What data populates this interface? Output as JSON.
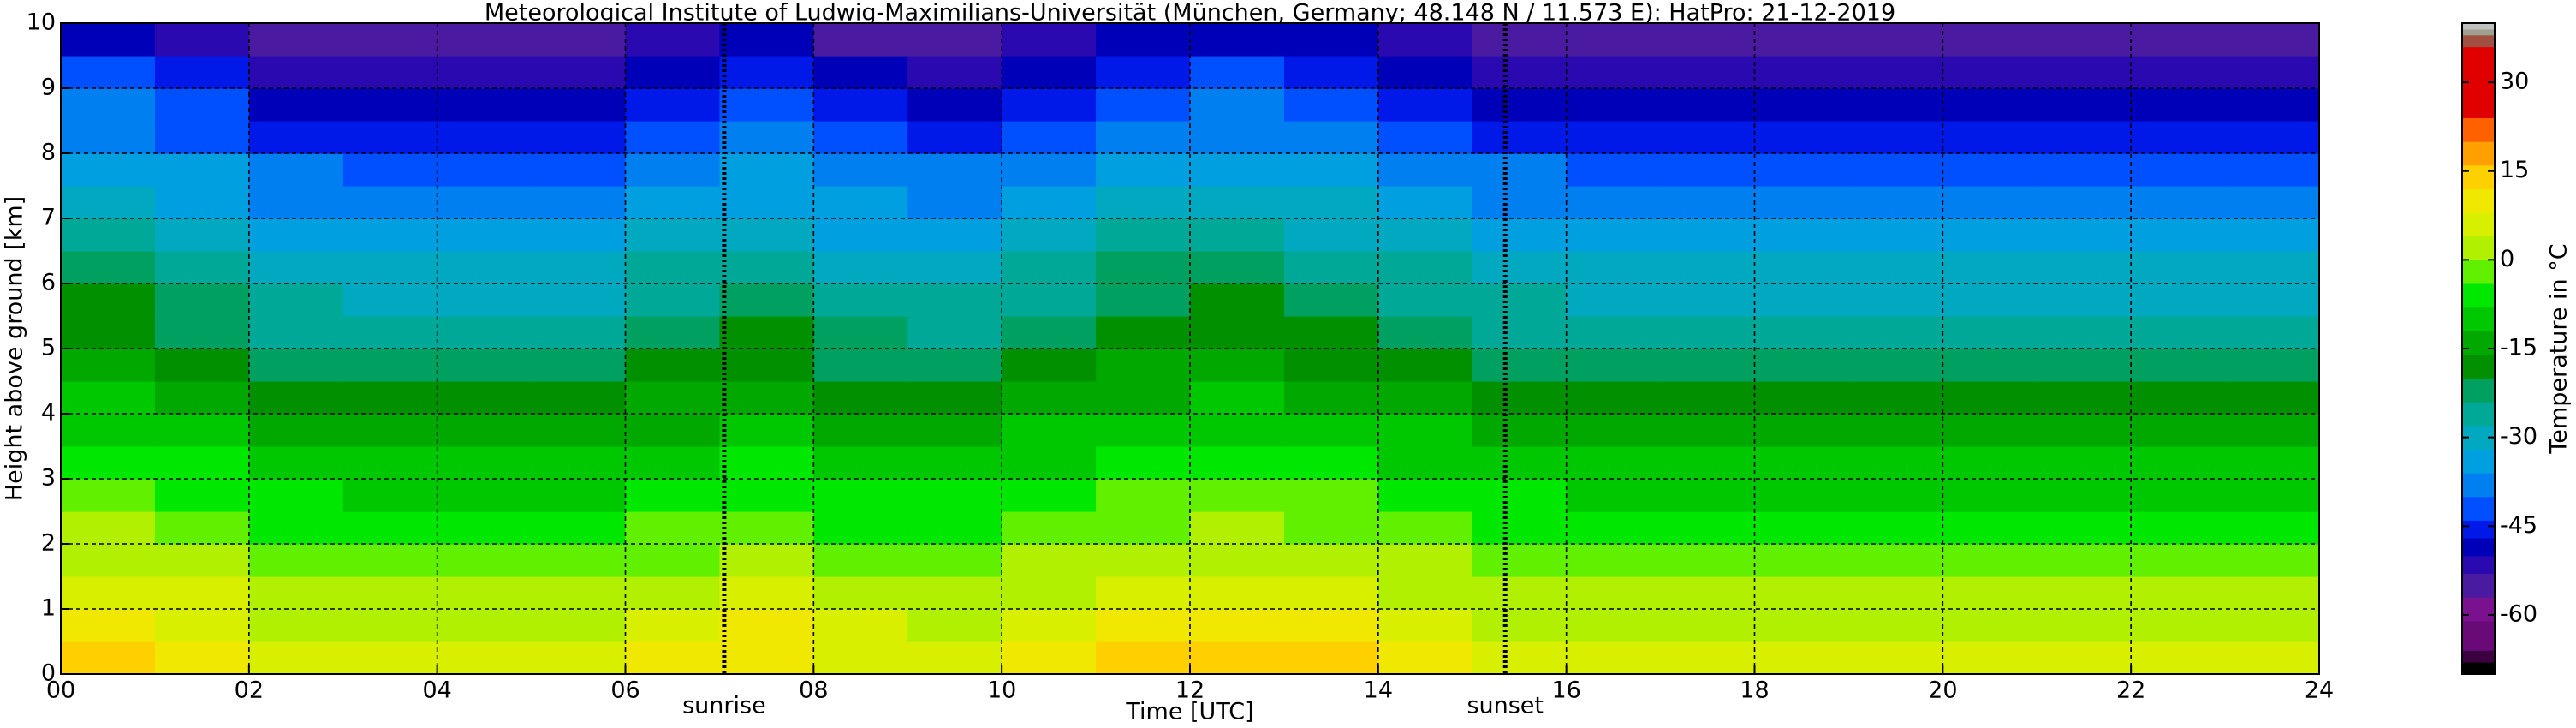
{
  "chart_data": {
    "type": "heatmap",
    "title": "Meteorological Institute of Ludwig-Maximilians-Universität (München, Germany; 48.148 N / 11.573 E):    HatPro: 21-12-2019",
    "x_label": "Time [UTC]",
    "y_label": "Height above ground [km]",
    "colorbar_label": "Temperature in °C",
    "xlim": [
      0,
      24
    ],
    "ylim": [
      0,
      10
    ],
    "xticks": [
      {
        "value": 0,
        "label": "00"
      },
      {
        "value": 2,
        "label": "02"
      },
      {
        "value": 4,
        "label": "04"
      },
      {
        "value": 6,
        "label": "06"
      },
      {
        "value": 8,
        "label": "08"
      },
      {
        "value": 10,
        "label": "10"
      },
      {
        "value": 12,
        "label": "12"
      },
      {
        "value": 14,
        "label": "14"
      },
      {
        "value": 16,
        "label": "16"
      },
      {
        "value": 18,
        "label": "18"
      },
      {
        "value": 20,
        "label": "20"
      },
      {
        "value": 22,
        "label": "22"
      },
      {
        "value": 24,
        "label": "24"
      }
    ],
    "yticks": [
      0,
      1,
      2,
      3,
      4,
      5,
      6,
      7,
      8,
      9,
      10
    ],
    "grid": true,
    "clim": [
      -70,
      40
    ],
    "cticks": [
      -60,
      -45,
      -30,
      -15,
      0,
      15,
      30
    ],
    "colorscale": [
      [
        -70,
        "#000000"
      ],
      [
        -68,
        "#3c0040"
      ],
      [
        -66,
        "#6a0a78"
      ],
      [
        -61,
        "#7a1290"
      ],
      [
        -57,
        "#4a1aa0"
      ],
      [
        -53,
        "#2a0ab0"
      ],
      [
        -50,
        "#0000b8"
      ],
      [
        -47,
        "#0018e8"
      ],
      [
        -44,
        "#0050ff"
      ],
      [
        -40,
        "#0080f0"
      ],
      [
        -36,
        "#00a0e0"
      ],
      [
        -32,
        "#00a8c0"
      ],
      [
        -28,
        "#00a898"
      ],
      [
        -24,
        "#00a060"
      ],
      [
        -20,
        "#009000"
      ],
      [
        -16,
        "#00a800"
      ],
      [
        -12,
        "#00c800"
      ],
      [
        -8,
        "#00e800"
      ],
      [
        -4,
        "#60f000"
      ],
      [
        0,
        "#b0f000"
      ],
      [
        4,
        "#d8f000"
      ],
      [
        8,
        "#f0e800"
      ],
      [
        12,
        "#ffd000"
      ],
      [
        16,
        "#ffa000"
      ],
      [
        20,
        "#ff6000"
      ],
      [
        24,
        "#e00000"
      ],
      [
        36,
        "#a05040"
      ],
      [
        38,
        "#a0a090"
      ],
      [
        39,
        "#c0c0c0"
      ]
    ],
    "annotations": [
      {
        "text": "sunrise",
        "x": 7.05
      },
      {
        "text": "sunset",
        "x": 15.35
      }
    ],
    "x": [
      0.5,
      1.5,
      2.5,
      3.5,
      4.5,
      5.5,
      6.5,
      7.5,
      8.5,
      9.5,
      10.5,
      11.5,
      12.5,
      13.5,
      14.5,
      15.5,
      16.5,
      17.5,
      18.5,
      19.5,
      20.5,
      21.5,
      22.5,
      23.5
    ],
    "y": [
      0.25,
      0.75,
      1.25,
      1.75,
      2.25,
      2.75,
      3.25,
      3.75,
      4.25,
      4.75,
      5.25,
      5.75,
      6.25,
      6.75,
      7.25,
      7.75,
      8.25,
      8.75,
      9.25,
      9.75
    ],
    "values": [
      [
        14,
        10,
        6,
        3,
        0,
        -3,
        -6,
        -9,
        -12,
        -15,
        -17,
        -20,
        -23,
        -27,
        -30,
        -33,
        -37,
        -40,
        -44,
        -48
      ],
      [
        10,
        7,
        4,
        1,
        -2,
        -5,
        -8,
        -11,
        -15,
        -18,
        -21,
        -24,
        -27,
        -30,
        -33,
        -36,
        -41,
        -44,
        -47,
        -51
      ],
      [
        5,
        3,
        1,
        -2,
        -5,
        -8,
        -11,
        -14,
        -18,
        -22,
        -25,
        -28,
        -31,
        -34,
        -37,
        -40,
        -45,
        -48,
        -51,
        -54
      ],
      [
        4,
        2,
        0,
        -3,
        -6,
        -9,
        -12,
        -15,
        -19,
        -23,
        -26,
        -29,
        -32,
        -35,
        -38,
        -41,
        -46,
        -49,
        -52,
        -55
      ],
      [
        4,
        2,
        0,
        -3,
        -6,
        -9,
        -12,
        -15,
        -19,
        -23,
        -26,
        -29,
        -32,
        -35,
        -38,
        -41,
        -46,
        -49,
        -52,
        -55
      ],
      [
        4,
        2,
        0,
        -3,
        -6,
        -9,
        -12,
        -15,
        -19,
        -23,
        -26,
        -29,
        -32,
        -35,
        -38,
        -41,
        -46,
        -49,
        -52,
        -55
      ],
      [
        8,
        5,
        2,
        -1,
        -4,
        -7,
        -10,
        -13,
        -16,
        -20,
        -22,
        -25,
        -28,
        -32,
        -35,
        -38,
        -42,
        -45,
        -49,
        -52
      ],
      [
        11,
        8,
        4,
        1,
        -2,
        -5,
        -8,
        -11,
        -14,
        -17,
        -20,
        -23,
        -26,
        -30,
        -33,
        -35,
        -40,
        -43,
        -46,
        -50
      ],
      [
        6,
        4,
        1,
        -2,
        -5,
        -8,
        -11,
        -14,
        -18,
        -21,
        -24,
        -27,
        -30,
        -33,
        -36,
        -39,
        -44,
        -47,
        -50,
        -54
      ],
      [
        5,
        3,
        1,
        -2,
        -5,
        -8,
        -11,
        -14,
        -18,
        -22,
        -25,
        -28,
        -31,
        -34,
        -37,
        -40,
        -45,
        -48,
        -51,
        -54
      ],
      [
        9,
        6,
        3,
        0,
        -3,
        -6,
        -9,
        -12,
        -16,
        -19,
        -22,
        -25,
        -28,
        -31,
        -34,
        -37,
        -42,
        -45,
        -48,
        -52
      ],
      [
        13,
        9,
        5,
        2,
        -1,
        -4,
        -7,
        -10,
        -13,
        -16,
        -18,
        -21,
        -24,
        -28,
        -31,
        -34,
        -38,
        -41,
        -45,
        -48
      ],
      [
        14,
        10,
        6,
        3,
        0,
        -3,
        -6,
        -9,
        -12,
        -15,
        -17,
        -20,
        -23,
        -27,
        -30,
        -33,
        -37,
        -40,
        -44,
        -48
      ],
      [
        12,
        8,
        5,
        2,
        -1,
        -4,
        -7,
        -10,
        -13,
        -17,
        -19,
        -22,
        -25,
        -29,
        -32,
        -34,
        -39,
        -42,
        -46,
        -49
      ],
      [
        9,
        6,
        3,
        0,
        -3,
        -6,
        -9,
        -12,
        -16,
        -19,
        -22,
        -25,
        -28,
        -31,
        -34,
        -37,
        -42,
        -45,
        -48,
        -52
      ],
      [
        5,
        3,
        1,
        -2,
        -5,
        -8,
        -11,
        -14,
        -18,
        -22,
        -25,
        -28,
        -31,
        -34,
        -37,
        -40,
        -45,
        -48,
        -51,
        -54
      ],
      [
        4,
        2,
        0,
        -3,
        -6,
        -9,
        -12,
        -15,
        -19,
        -23,
        -26,
        -29,
        -32,
        -35,
        -38,
        -41,
        -46,
        -49,
        -52,
        -55
      ],
      [
        4,
        2,
        0,
        -3,
        -6,
        -9,
        -12,
        -15,
        -19,
        -23,
        -26,
        -29,
        -32,
        -35,
        -38,
        -41,
        -46,
        -49,
        -52,
        -55
      ],
      [
        4,
        2,
        0,
        -3,
        -6,
        -9,
        -12,
        -15,
        -19,
        -23,
        -26,
        -29,
        -32,
        -35,
        -38,
        -41,
        -46,
        -49,
        -52,
        -55
      ],
      [
        4,
        2,
        0,
        -3,
        -6,
        -9,
        -12,
        -15,
        -19,
        -23,
        -26,
        -29,
        -32,
        -35,
        -38,
        -41,
        -46,
        -49,
        -52,
        -55
      ],
      [
        4,
        2,
        0,
        -3,
        -6,
        -9,
        -12,
        -15,
        -19,
        -23,
        -26,
        -29,
        -32,
        -35,
        -38,
        -41,
        -46,
        -49,
        -52,
        -55
      ],
      [
        4,
        2,
        0,
        -3,
        -6,
        -9,
        -12,
        -15,
        -19,
        -23,
        -26,
        -29,
        -32,
        -35,
        -38,
        -41,
        -46,
        -49,
        -52,
        -55
      ],
      [
        4,
        2,
        0,
        -3,
        -6,
        -9,
        -12,
        -15,
        -19,
        -23,
        -26,
        -29,
        -32,
        -35,
        -38,
        -41,
        -46,
        -49,
        -52,
        -55
      ],
      [
        4,
        2,
        0,
        -3,
        -6,
        -9,
        -12,
        -15,
        -19,
        -23,
        -26,
        -29,
        -32,
        -35,
        -38,
        -41,
        -46,
        -49,
        -52,
        -55
      ]
    ]
  }
}
